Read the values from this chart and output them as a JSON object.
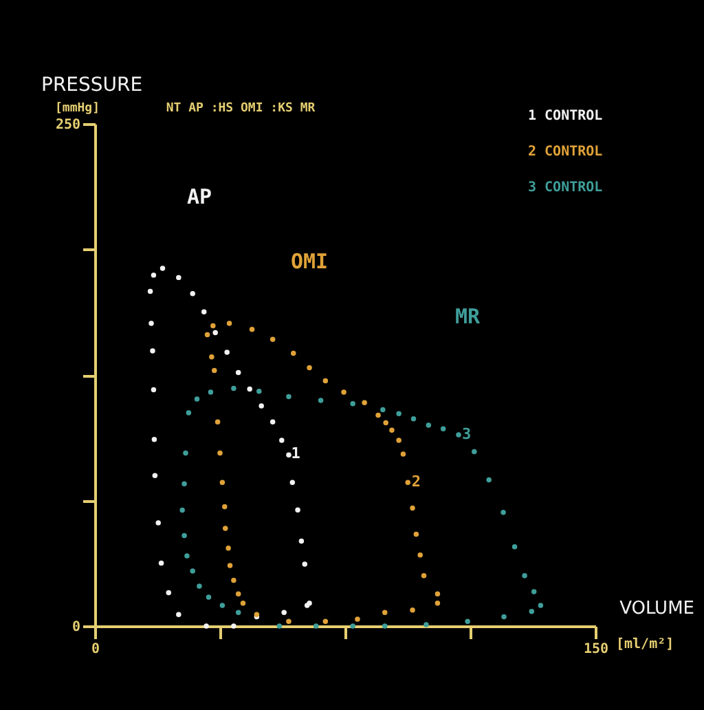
{
  "chart_data": {
    "type": "scatter",
    "xlabel": "VOLUME [ml/m²]",
    "ylabel": "PRESSURE [mmHg]",
    "xlim": [
      0,
      150
    ],
    "ylim": [
      0,
      250
    ],
    "xticks": [
      0,
      {
        "value": 37.5,
        "label": null
      },
      {
        "value": 75,
        "label": null
      },
      {
        "value": 112.5,
        "label": null
      },
      150
    ],
    "yticks": [
      0,
      {
        "value": 62.5,
        "label": null
      },
      {
        "value": 125,
        "label": null
      },
      {
        "value": 187.5,
        "label": null
      },
      250
    ],
    "grid": false,
    "legend": "top right",
    "marker": "circle",
    "series": [
      {
        "name": "1 CONTROL",
        "color": "#f2f2f2",
        "x": [
          64.3,
          62.9,
          61.9,
          60.8,
          59.2,
          58.1,
          56.0,
          53.3,
          49.9,
          46.4,
          43.0,
          39.6,
          36.1,
          32.7,
          29.3,
          25.1,
          20.3,
          17.6,
          16.6,
          16.9,
          17.3,
          17.6,
          17.8,
          18.0,
          19.0,
          19.9,
          22.1,
          25.1,
          33.4,
          41.6,
          48.5,
          56.7,
          63.6
        ],
        "values": [
          11.4,
          30.8,
          42.3,
          57.8,
          71.5,
          85.2,
          92.5,
          101.6,
          109.6,
          118.0,
          126.2,
          136.3,
          146.1,
          156.4,
          165.5,
          173.5,
          178.1,
          174.7,
          166.6,
          150.7,
          137.0,
          117.6,
          92.9,
          74.9,
          51.4,
          31.3,
          16.6,
          5.7,
          0,
          0,
          4.6,
          6.8,
          10.3
        ]
      },
      {
        "name": "2 CONTROL",
        "color": "#e0a238",
        "x": [
          102.7,
          98.6,
          97.5,
          96.3,
          95.2,
          93.8,
          92.4,
          91.1,
          89.0,
          87.2,
          84.9,
          80.8,
          74.6,
          69.1,
          64.3,
          59.5,
          53.3,
          47.1,
          40.3,
          35.4,
          33.7,
          35.0,
          35.8,
          36.8,
          37.5,
          38.2,
          38.9,
          39.1,
          40.0,
          40.5,
          41.6,
          43.0,
          44.4,
          48.5,
          58.1,
          69.1,
          78.7,
          86.9,
          95.2,
          102.7
        ],
        "values": [
          16.0,
          25.1,
          35.4,
          45.7,
          58.7,
          71.5,
          85.6,
          92.5,
          97.5,
          101.2,
          105.0,
          111.2,
          116.4,
          122.1,
          128.6,
          135.8,
          142.7,
          147.7,
          150.7,
          149.5,
          145.0,
          134.0,
          127.2,
          101.6,
          86.1,
          71.5,
          59.4,
          48.6,
          38.8,
          30.1,
          22.8,
          16.0,
          11.4,
          5.7,
          2.3,
          2.3,
          3.4,
          6.8,
          8.0,
          11.4
        ]
      },
      {
        "name": "3 CONTROL",
        "color": "#3f9e9a",
        "x": [
          133.6,
          131.6,
          128.8,
          125.8,
          122.4,
          118.1,
          113.7,
          109.0,
          104.4,
          100.0,
          95.5,
          91.1,
          86.3,
          77.3,
          67.7,
          58.1,
          49.2,
          41.6,
          34.7,
          30.6,
          28.1,
          27.2,
          26.8,
          26.2,
          26.8,
          27.6,
          29.3,
          31.3,
          34.1,
          38.2,
          43.0,
          55.3,
          66.3,
          77.3,
          86.9,
          99.3,
          111.7,
          122.6,
          130.9
        ],
        "values": [
          10.3,
          17.1,
          25.1,
          39.5,
          56.6,
          72.8,
          86.8,
          95.2,
          98.2,
          100.0,
          103.2,
          105.7,
          107.7,
          110.7,
          112.3,
          114.2,
          116.9,
          118.3,
          116.4,
          113.0,
          106.2,
          86.1,
          70.8,
          57.7,
          45.0,
          34.9,
          27.4,
          19.9,
          14.4,
          10.3,
          6.8,
          0,
          0,
          0,
          0,
          0.7,
          2.3,
          4.6,
          7.3
        ]
      }
    ],
    "annotations": [
      "AP",
      "OMI",
      "MR",
      {
        "text": "1",
        "x": 60.2,
        "y": 85.6
      },
      {
        "text": "2",
        "x": 96.3,
        "y": 71.5
      },
      {
        "text": "3",
        "x": 111.4,
        "y": 95.2
      },
      "NT AP :HS OMI :KS MR"
    ]
  }
}
